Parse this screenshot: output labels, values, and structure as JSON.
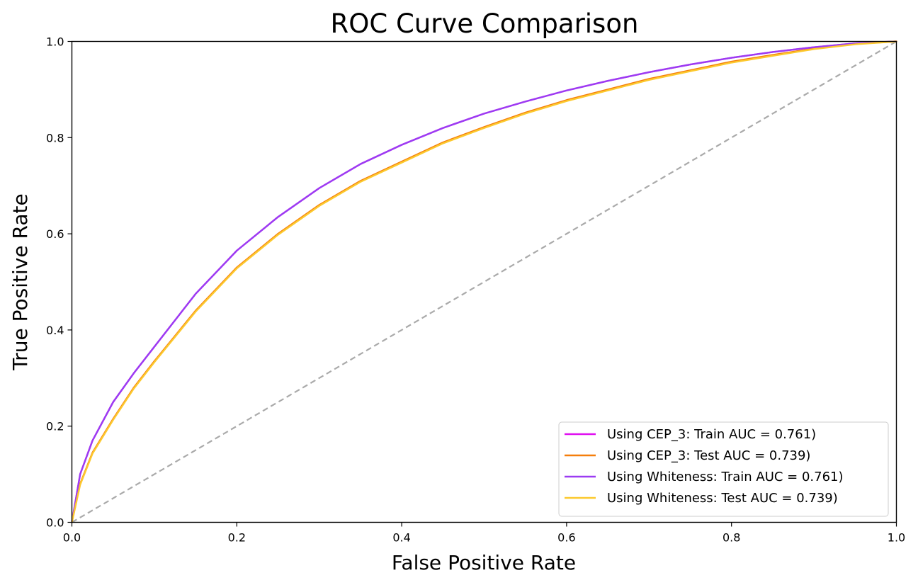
{
  "chart_data": {
    "type": "line",
    "title": "ROC Curve Comparison",
    "xlabel": "False Positive Rate",
    "ylabel": "True Positive Rate",
    "xlim": [
      0.0,
      1.0
    ],
    "ylim": [
      0.0,
      1.0
    ],
    "x_ticks": [
      "0.0",
      "0.2",
      "0.4",
      "0.6",
      "0.8",
      "1.0"
    ],
    "y_ticks": [
      "0.0",
      "0.2",
      "0.4",
      "0.6",
      "0.8",
      "1.0"
    ],
    "grid": false,
    "legend_position": "lower-right",
    "reference_line": {
      "x": [
        0,
        1
      ],
      "y": [
        0,
        1
      ],
      "color": "#aaaaaa",
      "style": "dashed"
    },
    "series": [
      {
        "name": "Using CEP_3: Train AUC = 0.761)",
        "color": "#e011f0",
        "x": [
          0,
          0.01,
          0.025,
          0.05,
          0.075,
          0.1,
          0.15,
          0.2,
          0.25,
          0.3,
          0.35,
          0.4,
          0.45,
          0.5,
          0.55,
          0.6,
          0.65,
          0.7,
          0.75,
          0.8,
          0.85,
          0.9,
          0.95,
          1.0
        ],
        "y": [
          0,
          0.1,
          0.17,
          0.25,
          0.31,
          0.365,
          0.475,
          0.565,
          0.635,
          0.695,
          0.745,
          0.785,
          0.82,
          0.85,
          0.875,
          0.898,
          0.918,
          0.936,
          0.952,
          0.966,
          0.978,
          0.988,
          0.996,
          1.0
        ]
      },
      {
        "name": "Using CEP_3: Test AUC = 0.739)",
        "color": "#f57e0b",
        "x": [
          0,
          0.01,
          0.025,
          0.05,
          0.075,
          0.1,
          0.15,
          0.2,
          0.25,
          0.3,
          0.35,
          0.4,
          0.45,
          0.5,
          0.55,
          0.6,
          0.65,
          0.7,
          0.75,
          0.8,
          0.85,
          0.9,
          0.95,
          1.0
        ],
        "y": [
          0,
          0.08,
          0.145,
          0.215,
          0.28,
          0.335,
          0.44,
          0.53,
          0.6,
          0.66,
          0.71,
          0.75,
          0.79,
          0.822,
          0.852,
          0.878,
          0.9,
          0.922,
          0.94,
          0.958,
          0.972,
          0.985,
          0.995,
          1.0
        ]
      },
      {
        "name": "Using Whiteness: Train AUC = 0.761)",
        "color": "#9b3cf2",
        "x": [
          0,
          0.01,
          0.025,
          0.05,
          0.075,
          0.1,
          0.15,
          0.2,
          0.25,
          0.3,
          0.35,
          0.4,
          0.45,
          0.5,
          0.55,
          0.6,
          0.65,
          0.7,
          0.75,
          0.8,
          0.85,
          0.9,
          0.95,
          1.0
        ],
        "y": [
          0,
          0.1,
          0.17,
          0.25,
          0.31,
          0.365,
          0.475,
          0.565,
          0.635,
          0.695,
          0.745,
          0.785,
          0.82,
          0.85,
          0.875,
          0.898,
          0.918,
          0.936,
          0.952,
          0.966,
          0.978,
          0.988,
          0.996,
          1.0
        ]
      },
      {
        "name": "Using Whiteness: Test AUC = 0.739)",
        "color": "#fcc92e",
        "x": [
          0,
          0.01,
          0.025,
          0.05,
          0.075,
          0.1,
          0.15,
          0.2,
          0.25,
          0.3,
          0.35,
          0.4,
          0.45,
          0.5,
          0.55,
          0.6,
          0.65,
          0.7,
          0.75,
          0.8,
          0.85,
          0.9,
          0.95,
          1.0
        ],
        "y": [
          0,
          0.078,
          0.143,
          0.213,
          0.278,
          0.333,
          0.438,
          0.528,
          0.598,
          0.658,
          0.708,
          0.748,
          0.788,
          0.82,
          0.85,
          0.876,
          0.898,
          0.92,
          0.938,
          0.956,
          0.97,
          0.984,
          0.994,
          1.0
        ]
      }
    ]
  }
}
